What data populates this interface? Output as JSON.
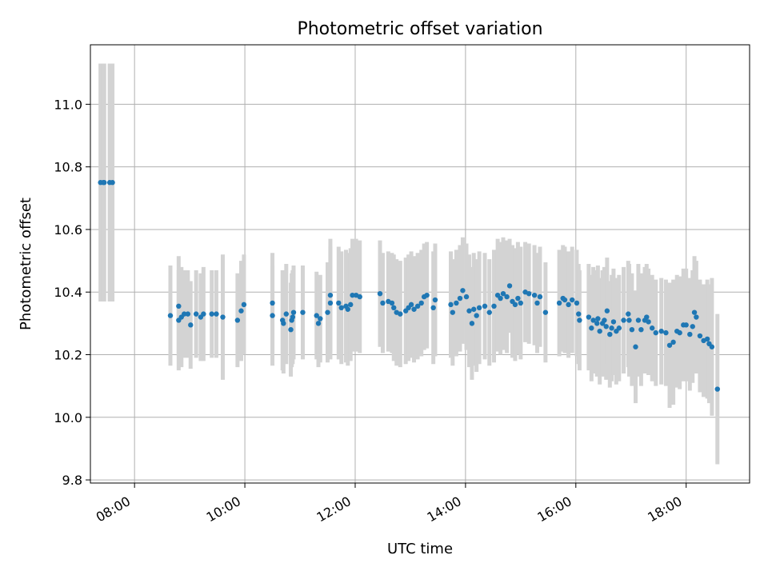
{
  "chart_data": {
    "type": "scatter",
    "title": "Photometric offset variation",
    "xlabel": "UTC time",
    "ylabel": "Photometric offset",
    "x_unit": "UTC time (HH:MM)",
    "xlim": [
      "07:12",
      "19:09"
    ],
    "ylim": [
      9.79,
      11.19
    ],
    "x_tick_labels": [
      "08:00",
      "10:00",
      "12:00",
      "14:00",
      "16:00",
      "18:00"
    ],
    "y_tick_labels": [
      "9.8",
      "10.0",
      "10.2",
      "10.4",
      "10.6",
      "10.8",
      "11.0"
    ],
    "y_ticks": [
      9.8,
      10.0,
      10.2,
      10.4,
      10.6,
      10.8,
      11.0
    ],
    "grid": true,
    "legend": "none",
    "colors": {
      "points": "#1f77b4",
      "error_bars": "#d3d3d3"
    },
    "series": [
      {
        "points": [
          [
            "07:23",
            10.75,
            0.38
          ],
          [
            "07:26",
            10.75,
            0.38
          ],
          [
            "07:27",
            10.75,
            0.38
          ],
          [
            "07:33",
            10.75,
            0.38
          ],
          [
            "07:36",
            10.75,
            0.38
          ],
          [
            "08:39",
            10.325,
            0.16
          ],
          [
            "08:48",
            10.355,
            0.16
          ],
          [
            "08:48",
            10.31,
            0.16
          ],
          [
            "08:51",
            10.32,
            0.16
          ],
          [
            "08:54",
            10.33,
            0.14
          ],
          [
            "08:58",
            10.33,
            0.14
          ],
          [
            "09:01",
            10.295,
            0.14
          ],
          [
            "09:07",
            10.33,
            0.14
          ],
          [
            "09:12",
            10.32,
            0.14
          ],
          [
            "09:15",
            10.33,
            0.15
          ],
          [
            "09:24",
            10.33,
            0.14
          ],
          [
            "09:29",
            10.33,
            0.14
          ],
          [
            "09:36",
            10.32,
            0.2
          ],
          [
            "09:52",
            10.31,
            0.15
          ],
          [
            "09:56",
            10.34,
            0.16
          ],
          [
            "09:59",
            10.36,
            0.16
          ],
          [
            "10:30",
            10.365,
            0.16
          ],
          [
            "10:30",
            10.325,
            0.16
          ],
          [
            "10:41",
            10.31,
            0.16
          ],
          [
            "10:42",
            10.3,
            0.16
          ],
          [
            "10:45",
            10.33,
            0.16
          ],
          [
            "10:50",
            10.28,
            0.15
          ],
          [
            "10:51",
            10.31,
            0.15
          ],
          [
            "10:52",
            10.32,
            0.15
          ],
          [
            "10:53",
            10.335,
            0.15
          ],
          [
            "11:03",
            10.335,
            0.15
          ],
          [
            "11:18",
            10.325,
            0.14
          ],
          [
            "11:20",
            10.3,
            0.14
          ],
          [
            "11:22",
            10.315,
            0.14
          ],
          [
            "11:30",
            10.335,
            0.16
          ],
          [
            "11:33",
            10.365,
            0.18
          ],
          [
            "11:33",
            10.39,
            0.18
          ],
          [
            "11:42",
            10.365,
            0.18
          ],
          [
            "11:45",
            10.35,
            0.18
          ],
          [
            "11:50",
            10.355,
            0.18
          ],
          [
            "11:52",
            10.345,
            0.18
          ],
          [
            "11:55",
            10.36,
            0.18
          ],
          [
            "11:57",
            10.39,
            0.18
          ],
          [
            "12:01",
            10.39,
            0.18
          ],
          [
            "12:05",
            10.385,
            0.18
          ],
          [
            "12:27",
            10.395,
            0.17
          ],
          [
            "12:30",
            10.365,
            0.16
          ],
          [
            "12:36",
            10.37,
            0.16
          ],
          [
            "12:40",
            10.365,
            0.16
          ],
          [
            "12:42",
            10.35,
            0.17
          ],
          [
            "12:45",
            10.335,
            0.17
          ],
          [
            "12:49",
            10.33,
            0.17
          ],
          [
            "12:55",
            10.34,
            0.17
          ],
          [
            "12:58",
            10.35,
            0.17
          ],
          [
            "13:01",
            10.36,
            0.17
          ],
          [
            "13:04",
            10.345,
            0.17
          ],
          [
            "13:08",
            10.355,
            0.17
          ],
          [
            "13:12",
            10.365,
            0.17
          ],
          [
            "13:15",
            10.385,
            0.17
          ],
          [
            "13:18",
            10.39,
            0.17
          ],
          [
            "13:25",
            10.35,
            0.18
          ],
          [
            "13:27",
            10.375,
            0.18
          ],
          [
            "13:44",
            10.36,
            0.17
          ],
          [
            "13:46",
            10.335,
            0.17
          ],
          [
            "13:50",
            10.365,
            0.17
          ],
          [
            "13:54",
            10.38,
            0.17
          ],
          [
            "13:57",
            10.405,
            0.17
          ],
          [
            "14:01",
            10.385,
            0.17
          ],
          [
            "14:04",
            10.34,
            0.18
          ],
          [
            "14:07",
            10.3,
            0.18
          ],
          [
            "14:09",
            10.345,
            0.18
          ],
          [
            "14:12",
            10.325,
            0.18
          ],
          [
            "14:15",
            10.35,
            0.18
          ],
          [
            "14:21",
            10.355,
            0.17
          ],
          [
            "14:26",
            10.335,
            0.17
          ],
          [
            "14:31",
            10.355,
            0.18
          ],
          [
            "14:35",
            10.39,
            0.18
          ],
          [
            "14:38",
            10.38,
            0.18
          ],
          [
            "14:41",
            10.395,
            0.18
          ],
          [
            "14:45",
            10.385,
            0.18
          ],
          [
            "14:48",
            10.42,
            0.15
          ],
          [
            "14:51",
            10.37,
            0.18
          ],
          [
            "14:54",
            10.36,
            0.18
          ],
          [
            "14:57",
            10.38,
            0.18
          ],
          [
            "15:00",
            10.365,
            0.18
          ],
          [
            "15:05",
            10.4,
            0.16
          ],
          [
            "15:09",
            10.395,
            0.16
          ],
          [
            "15:15",
            10.39,
            0.16
          ],
          [
            "15:18",
            10.365,
            0.16
          ],
          [
            "15:21",
            10.385,
            0.16
          ],
          [
            "15:27",
            10.335,
            0.16
          ],
          [
            "15:42",
            10.365,
            0.17
          ],
          [
            "15:46",
            10.38,
            0.17
          ],
          [
            "15:48",
            10.375,
            0.17
          ],
          [
            "15:52",
            10.36,
            0.17
          ],
          [
            "15:56",
            10.375,
            0.17
          ],
          [
            "16:01",
            10.365,
            0.17
          ],
          [
            "16:03",
            10.33,
            0.16
          ],
          [
            "16:04",
            10.31,
            0.16
          ],
          [
            "16:14",
            10.32,
            0.17
          ],
          [
            "16:17",
            10.285,
            0.17
          ],
          [
            "16:19",
            10.31,
            0.17
          ],
          [
            "16:23",
            10.3,
            0.17
          ],
          [
            "16:24",
            10.315,
            0.17
          ],
          [
            "16:26",
            10.275,
            0.17
          ],
          [
            "16:29",
            10.3,
            0.17
          ],
          [
            "16:31",
            10.31,
            0.17
          ],
          [
            "16:33",
            10.29,
            0.17
          ],
          [
            "16:34",
            10.34,
            0.17
          ],
          [
            "16:37",
            10.265,
            0.17
          ],
          [
            "16:39",
            10.285,
            0.17
          ],
          [
            "16:41",
            10.305,
            0.17
          ],
          [
            "16:44",
            10.275,
            0.17
          ],
          [
            "16:47",
            10.285,
            0.17
          ],
          [
            "16:52",
            10.31,
            0.17
          ],
          [
            "16:57",
            10.33,
            0.17
          ],
          [
            "16:58",
            10.31,
            0.18
          ],
          [
            "17:01",
            10.28,
            0.18
          ],
          [
            "17:05",
            10.225,
            0.18
          ],
          [
            "17:08",
            10.31,
            0.18
          ],
          [
            "17:11",
            10.28,
            0.18
          ],
          [
            "17:15",
            10.31,
            0.17
          ],
          [
            "17:17",
            10.32,
            0.17
          ],
          [
            "17:19",
            10.305,
            0.17
          ],
          [
            "17:23",
            10.285,
            0.17
          ],
          [
            "17:27",
            10.27,
            0.17
          ],
          [
            "17:33",
            10.275,
            0.17
          ],
          [
            "17:38",
            10.27,
            0.17
          ],
          [
            "17:42",
            10.23,
            0.2
          ],
          [
            "17:46",
            10.24,
            0.2
          ],
          [
            "17:50",
            10.275,
            0.18
          ],
          [
            "17:53",
            10.27,
            0.18
          ],
          [
            "17:57",
            10.295,
            0.18
          ],
          [
            "18:00",
            10.295,
            0.18
          ],
          [
            "18:04",
            10.265,
            0.18
          ],
          [
            "18:07",
            10.29,
            0.18
          ],
          [
            "18:09",
            10.335,
            0.18
          ],
          [
            "18:11",
            10.32,
            0.18
          ],
          [
            "18:15",
            10.26,
            0.18
          ],
          [
            "18:19",
            10.245,
            0.18
          ],
          [
            "18:23",
            10.25,
            0.19
          ],
          [
            "18:25",
            10.235,
            0.19
          ],
          [
            "18:28",
            10.225,
            0.22
          ],
          [
            "18:34",
            10.09,
            0.24
          ]
        ]
      }
    ]
  }
}
